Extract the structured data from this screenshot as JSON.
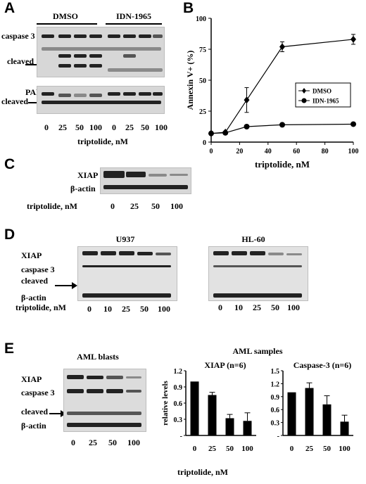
{
  "panels": {
    "A": "A",
    "B": "B",
    "C": "C",
    "D": "D",
    "E": "E"
  },
  "panelA": {
    "group1": "DMSO",
    "group2": "IDN-1965",
    "row_caspase3": "caspase 3",
    "row_cleaved1": "cleaved",
    "row_parp": "PARP",
    "row_cleaved2": "cleaved",
    "ticks": [
      "0",
      "25",
      "50",
      "100",
      "0",
      "25",
      "50",
      "100"
    ],
    "xlabel": "triptolide, nM"
  },
  "panelC": {
    "row_xiap": "XIAP",
    "row_actin": "β-actin",
    "xlabel": "triptolide, nM",
    "ticks": [
      "0",
      "25",
      "50",
      "100"
    ]
  },
  "panelD": {
    "title1": "U937",
    "title2": "HL-60",
    "row_xiap": "XIAP",
    "row_caspase3": "caspase 3",
    "row_cleaved": "cleaved",
    "row_actin": "β-actin",
    "xlabel": "triptolide, nM",
    "ticks1": [
      "0",
      "10",
      "25",
      "50",
      "100"
    ],
    "ticks2": [
      "0",
      "10",
      "25",
      "50",
      "100"
    ]
  },
  "panelE": {
    "blot_title": "AML blasts",
    "samples_title": "AML samples",
    "row_xiap": "XIAP",
    "row_caspase3": "caspase 3",
    "row_cleaved": "cleaved",
    "row_actin": "β-actin",
    "ticks": [
      "0",
      "25",
      "50",
      "100"
    ],
    "xlabel": "triptolide, nM"
  },
  "chart_data": [
    {
      "type": "line",
      "xlabel": "triptolide, nM",
      "ylabel": "Annexin V+ (%)",
      "xlim": [
        0,
        100
      ],
      "ylim": [
        0,
        100
      ],
      "xticks": [
        0,
        20,
        40,
        60,
        80,
        100
      ],
      "yticks": [
        0,
        25,
        50,
        75,
        100
      ],
      "legend_position": "right",
      "series": [
        {
          "name": "DMSO",
          "marker": "diamond",
          "x": [
            0,
            10,
            25,
            50,
            100
          ],
          "y": [
            7,
            8,
            34,
            77,
            83
          ],
          "err": [
            0,
            0,
            10,
            4,
            4
          ]
        },
        {
          "name": "IDN-1965",
          "marker": "circle",
          "x": [
            0,
            10,
            25,
            50,
            100
          ],
          "y": [
            7,
            7.5,
            12.5,
            14,
            14.5
          ],
          "err": [
            0,
            0,
            0,
            0,
            0
          ]
        }
      ]
    },
    {
      "type": "bar",
      "title": "XIAP (n=6)",
      "ylabel": "relative levels",
      "categories": [
        "0",
        "25",
        "50",
        "100"
      ],
      "values": [
        1.0,
        0.75,
        0.32,
        0.27
      ],
      "err": [
        0,
        0.05,
        0.07,
        0.15
      ],
      "ylim": [
        0,
        1.2
      ],
      "yticks": [
        "1.2",
        "0.9",
        "0.6",
        "0.3",
        "-"
      ]
    },
    {
      "type": "bar",
      "title": "Caspase-3 (n=6)",
      "categories": [
        "0",
        "25",
        "50",
        "100"
      ],
      "values": [
        1.0,
        1.1,
        0.72,
        0.32
      ],
      "err": [
        0,
        0.12,
        0.2,
        0.15
      ],
      "ylim": [
        0,
        1.5
      ],
      "yticks": [
        "1.5",
        "1.2",
        "0.9",
        "0.6",
        "0.3",
        "-"
      ]
    }
  ]
}
